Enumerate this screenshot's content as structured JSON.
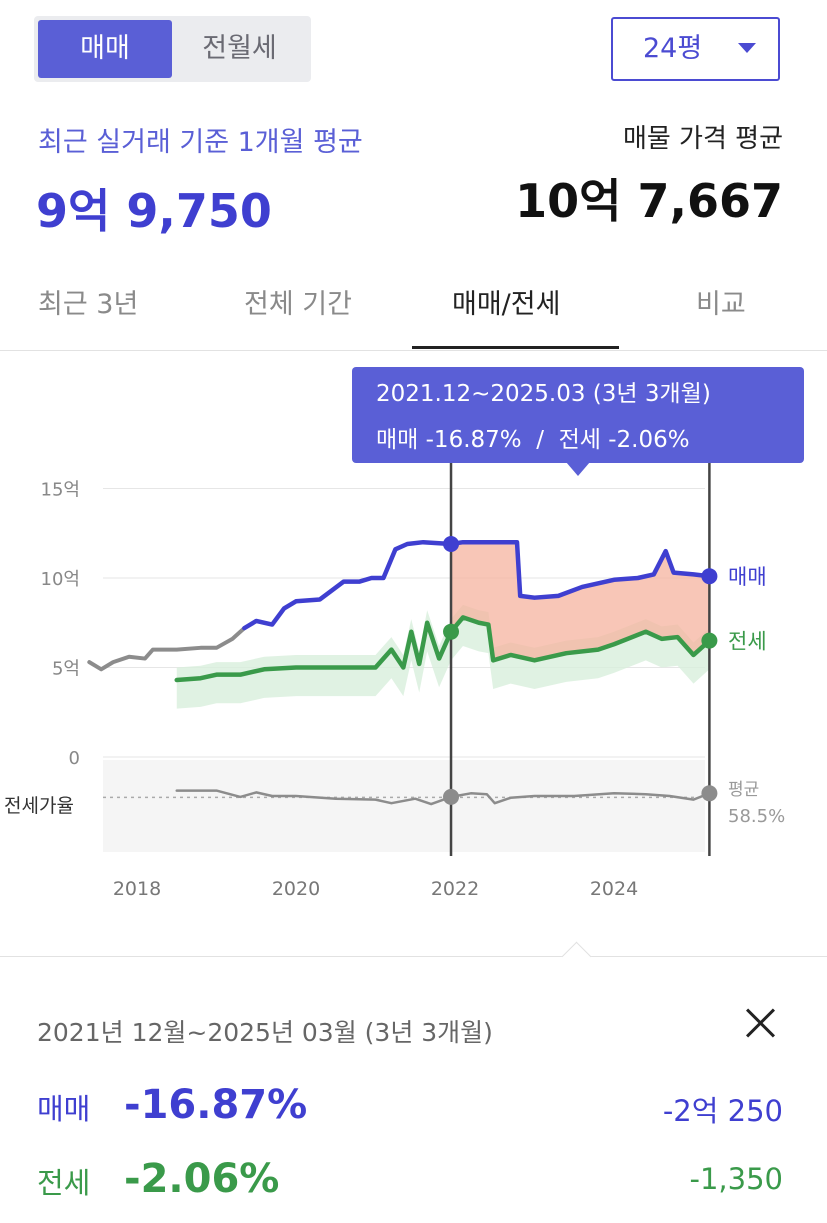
{
  "deal_type_tabs": {
    "active": "매매",
    "inactive": "전월세"
  },
  "area_select": {
    "value": "24평"
  },
  "summary": {
    "recent_label": "최근 실거래 기준 1개월 평균",
    "recent_value": "9억 9,750",
    "listing_label": "매물 가격 평균",
    "listing_value": "10억 7,667"
  },
  "period_tabs": [
    "최근 3년",
    "전체 기간",
    "매매/전세",
    "비교"
  ],
  "active_period_tab": "매매/전세",
  "tooltip": {
    "range": "2021.12~2025.03 (3년 3개월)",
    "changes": "매매 -16.87%  /  전세 -2.06%"
  },
  "colors": {
    "sale": "#3f3fd0",
    "rent": "#3a9a4a",
    "ratio": "#8c8c8c",
    "highlight": "#f6b39f",
    "tooltip_bg": "#5a5fd6"
  },
  "chart_data": {
    "type": "line",
    "x_ticks": [
      "2018",
      "2020",
      "2022",
      "2024"
    ],
    "y_ticks": [
      "15억",
      "10억",
      "5억",
      "0"
    ],
    "ylim": [
      0,
      15
    ],
    "ylabel": "",
    "xlabel": "",
    "grid": true,
    "selection": {
      "start": 2021.95,
      "end": 2025.2
    },
    "ratio_label": "전세가율",
    "ratio_avg_label": "평균",
    "ratio_avg_value": "58.5%",
    "series": [
      {
        "name": "매매",
        "values": [
          [
            2017.4,
            5.3
          ],
          [
            2017.55,
            4.9
          ],
          [
            2017.7,
            5.3
          ],
          [
            2017.9,
            5.6
          ],
          [
            2018.1,
            5.5
          ],
          [
            2018.2,
            6.0
          ],
          [
            2018.5,
            6.0
          ],
          [
            2018.8,
            6.1
          ],
          [
            2019.0,
            6.1
          ],
          [
            2019.2,
            6.6
          ],
          [
            2019.35,
            7.2
          ],
          [
            2019.5,
            7.6
          ],
          [
            2019.7,
            7.4
          ],
          [
            2019.85,
            8.3
          ],
          [
            2020.0,
            8.7
          ],
          [
            2020.3,
            8.8
          ],
          [
            2020.6,
            9.8
          ],
          [
            2020.8,
            9.8
          ],
          [
            2020.95,
            10.0
          ],
          [
            2021.1,
            10.0
          ],
          [
            2021.25,
            11.6
          ],
          [
            2021.4,
            11.9
          ],
          [
            2021.6,
            12.0
          ],
          [
            2021.95,
            11.9
          ],
          [
            2022.1,
            12.0
          ],
          [
            2022.5,
            12.0
          ],
          [
            2022.78,
            12.0
          ],
          [
            2022.82,
            9.0
          ],
          [
            2023.0,
            8.9
          ],
          [
            2023.3,
            9.0
          ],
          [
            2023.6,
            9.5
          ],
          [
            2024.0,
            9.9
          ],
          [
            2024.3,
            10.0
          ],
          [
            2024.5,
            10.2
          ],
          [
            2024.65,
            11.5
          ],
          [
            2024.75,
            10.3
          ],
          [
            2025.0,
            10.2
          ],
          [
            2025.2,
            10.1
          ]
        ]
      },
      {
        "name": "전세",
        "values": [
          [
            2018.5,
            4.3
          ],
          [
            2018.8,
            4.4
          ],
          [
            2019.0,
            4.6
          ],
          [
            2019.3,
            4.6
          ],
          [
            2019.6,
            4.9
          ],
          [
            2020.0,
            5.0
          ],
          [
            2020.5,
            5.0
          ],
          [
            2021.0,
            5.0
          ],
          [
            2021.2,
            6.0
          ],
          [
            2021.35,
            5.0
          ],
          [
            2021.45,
            7.0
          ],
          [
            2021.55,
            5.2
          ],
          [
            2021.65,
            7.5
          ],
          [
            2021.8,
            5.5
          ],
          [
            2021.95,
            7.0
          ],
          [
            2022.1,
            7.8
          ],
          [
            2022.3,
            7.5
          ],
          [
            2022.42,
            7.4
          ],
          [
            2022.48,
            5.4
          ],
          [
            2022.7,
            5.7
          ],
          [
            2023.0,
            5.4
          ],
          [
            2023.4,
            5.8
          ],
          [
            2023.8,
            6.0
          ],
          [
            2024.0,
            6.3
          ],
          [
            2024.4,
            7.0
          ],
          [
            2024.6,
            6.6
          ],
          [
            2024.8,
            6.7
          ],
          [
            2025.0,
            5.7
          ],
          [
            2025.2,
            6.5
          ]
        ]
      },
      {
        "name": "전세가율",
        "values": [
          [
            2018.5,
            66
          ],
          [
            2019.0,
            66
          ],
          [
            2019.3,
            59
          ],
          [
            2019.5,
            64
          ],
          [
            2019.7,
            60
          ],
          [
            2020.0,
            60
          ],
          [
            2020.5,
            57
          ],
          [
            2021.0,
            56
          ],
          [
            2021.2,
            52
          ],
          [
            2021.5,
            57
          ],
          [
            2021.7,
            51
          ],
          [
            2021.95,
            59
          ],
          [
            2022.2,
            63
          ],
          [
            2022.4,
            62
          ],
          [
            2022.5,
            52
          ],
          [
            2022.7,
            58
          ],
          [
            2023.0,
            60
          ],
          [
            2023.5,
            60
          ],
          [
            2024.0,
            63
          ],
          [
            2024.4,
            62
          ],
          [
            2024.7,
            60
          ],
          [
            2025.0,
            56
          ],
          [
            2025.2,
            63
          ]
        ]
      }
    ]
  },
  "detail": {
    "range": "2021년 12월~2025년 03월 (3년 3개월)",
    "sale": {
      "label": "매매",
      "pct": "-16.87%",
      "amount": "-2억 250"
    },
    "rent": {
      "label": "전세",
      "pct": "-2.06%",
      "amount": "-1,350"
    }
  }
}
